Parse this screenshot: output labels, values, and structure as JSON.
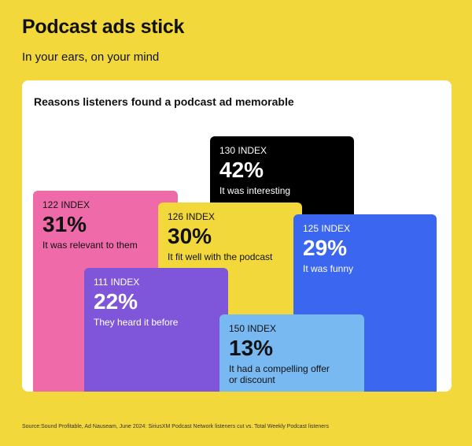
{
  "header": {
    "title": "Podcast ads stick",
    "subtitle": "In your ears, on your mind"
  },
  "chart_data": {
    "type": "bar",
    "title": "Reasons listeners found a podcast ad memorable",
    "series": [
      {
        "label": "It was relevant to them",
        "value": 31,
        "value_text": "31%",
        "index_text": "122 INDEX",
        "color": "#ef6aa8",
        "text_color": "#111111"
      },
      {
        "label": "It was interesting",
        "value": 42,
        "value_text": "42%",
        "index_text": "130 INDEX",
        "color": "#000000",
        "text_color": "#ffffff"
      },
      {
        "label": "It fit well with the podcast",
        "value": 30,
        "value_text": "30%",
        "index_text": "126 INDEX",
        "color": "#f2d83b",
        "text_color": "#111111"
      },
      {
        "label": "It was funny",
        "value": 29,
        "value_text": "29%",
        "index_text": "125 INDEX",
        "color": "#3b66f0",
        "text_color": "#ffffff"
      },
      {
        "label": "They heard it before",
        "value": 22,
        "value_text": "22%",
        "index_text": "111 INDEX",
        "color": "#7f56d9",
        "text_color": "#ffffff"
      },
      {
        "label": "It had a compelling offer or discount",
        "value": 13,
        "value_text": "13%",
        "index_text": "150 INDEX",
        "color": "#79b9f2",
        "text_color": "#111111"
      }
    ]
  },
  "footer": {
    "source": "Source:Sound Profitable, Ad Nauseam, June 2024: SiriusXM Podcast Network listeners cut vs. Total Weekly Podcast listeners"
  }
}
